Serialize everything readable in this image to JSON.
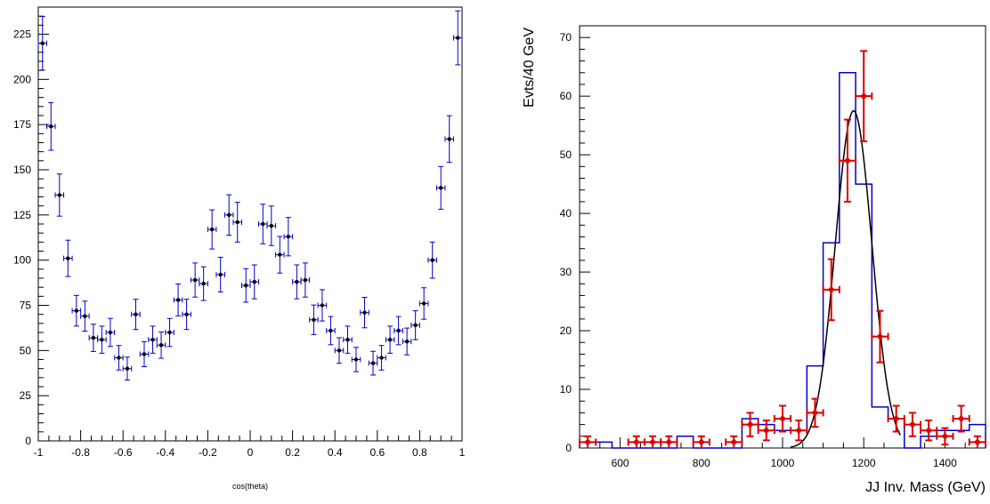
{
  "chart_data": [
    {
      "type": "scatter",
      "title": "",
      "xlabel": "cos(theta)",
      "ylabel": "",
      "xlim": [
        -1,
        1
      ],
      "ylim": [
        0,
        240
      ],
      "x_ticks": [
        -1,
        -0.8,
        -0.6,
        -0.4,
        -0.2,
        0,
        0.2,
        0.4,
        0.6,
        0.8,
        1
      ],
      "x_tick_labels": [
        "-1",
        "-0.8",
        "-0.6",
        "-0.4",
        "-0.2",
        "0",
        "0.2",
        "0.4",
        "0.6",
        "0.8",
        "1"
      ],
      "y_ticks": [
        0,
        25,
        50,
        75,
        100,
        125,
        150,
        175,
        200,
        225
      ],
      "y_tick_labels": [
        "0",
        "25",
        "50",
        "75",
        "100",
        "125",
        "150",
        "175",
        "200",
        "225"
      ],
      "grid": false,
      "marker_color": "#000000",
      "errorbar_color": "#0000cc",
      "bin_half_width": 0.02,
      "x": [
        -0.98,
        -0.94,
        -0.9,
        -0.86,
        -0.82,
        -0.78,
        -0.74,
        -0.7,
        -0.66,
        -0.62,
        -0.58,
        -0.54,
        -0.5,
        -0.46,
        -0.42,
        -0.38,
        -0.34,
        -0.3,
        -0.26,
        -0.22,
        -0.18,
        -0.14,
        -0.1,
        -0.06,
        -0.02,
        0.02,
        0.06,
        0.1,
        0.14,
        0.18,
        0.22,
        0.26,
        0.3,
        0.34,
        0.38,
        0.42,
        0.46,
        0.5,
        0.54,
        0.58,
        0.62,
        0.66,
        0.7,
        0.74,
        0.78,
        0.82,
        0.86,
        0.9,
        0.94,
        0.98
      ],
      "y": [
        220,
        174,
        136,
        101,
        72,
        69,
        57,
        56,
        60,
        46,
        40,
        70,
        48,
        56,
        53,
        60,
        78,
        70,
        89,
        87,
        117,
        92,
        125,
        121,
        86,
        88,
        120,
        119,
        103,
        113,
        88,
        89,
        67,
        75,
        61,
        50,
        56,
        45,
        71,
        43,
        46,
        56,
        61,
        55,
        64,
        76,
        100,
        140,
        167,
        223
      ]
    },
    {
      "type": "histogram",
      "title": "",
      "xlabel": "JJ Inv. Mass (GeV)",
      "ylabel": "Evts/40 GeV",
      "xlim": [
        500,
        1500
      ],
      "ylim": [
        0,
        72
      ],
      "x_ticks": [
        600,
        800,
        1000,
        1200,
        1400
      ],
      "x_tick_labels": [
        "600",
        "800",
        "1000",
        "1200",
        "1400"
      ],
      "y_ticks": [
        0,
        10,
        20,
        30,
        40,
        50,
        60,
        70
      ],
      "y_tick_labels": [
        "0",
        "10",
        "20",
        "30",
        "40",
        "50",
        "60",
        "70"
      ],
      "grid": false,
      "histogram": {
        "color": "#0000cc",
        "bin_edges": [
          500,
          540,
          580,
          620,
          660,
          700,
          740,
          780,
          820,
          860,
          900,
          940,
          980,
          1020,
          1060,
          1100,
          1140,
          1180,
          1220,
          1260,
          1300,
          1340,
          1380,
          1420,
          1460,
          1500
        ],
        "counts": [
          1,
          1,
          0,
          0,
          0,
          0,
          2,
          0,
          0,
          0,
          5,
          4,
          3,
          3,
          14,
          35,
          64,
          45,
          7,
          5,
          0,
          2,
          3,
          3,
          4
        ]
      },
      "data_points": {
        "color": "#dd0000",
        "bin_half_width": 20,
        "x": [
          520,
          640,
          680,
          720,
          800,
          880,
          920,
          960,
          1000,
          1040,
          1080,
          1120,
          1160,
          1200,
          1240,
          1280,
          1320,
          1360,
          1400,
          1440,
          1480
        ],
        "y": [
          1,
          1,
          1,
          1,
          1,
          1,
          4,
          3,
          5,
          3,
          6,
          27,
          49,
          60,
          19,
          5,
          4,
          3,
          2,
          5,
          1
        ],
        "err": [
          1,
          1,
          1,
          1,
          1,
          1,
          2,
          1.7,
          2.2,
          1.7,
          2.4,
          5.2,
          7,
          7.7,
          4.4,
          2.2,
          2,
          1.7,
          1.4,
          2.2,
          1
        ]
      },
      "fit_curve": {
        "type": "gaussian",
        "color": "#000000",
        "amplitude": 57.5,
        "mean": 1175,
        "sigma": 45,
        "x_range": [
          1020,
          1290
        ]
      }
    }
  ]
}
